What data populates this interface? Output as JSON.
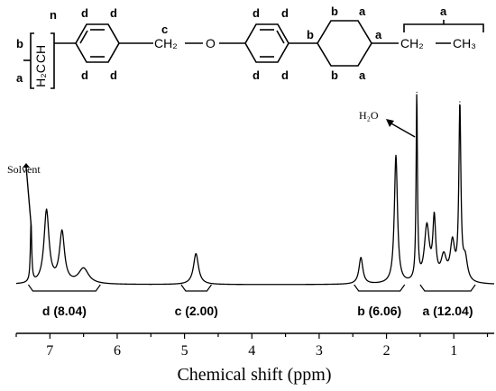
{
  "chart_data": {
    "type": "line",
    "xlabel": "Chemical shift (ppm)",
    "x_reversed": true,
    "xlim": [
      7.5,
      0.4
    ],
    "x_ticks": [
      7,
      6,
      5,
      4,
      3,
      2,
      1
    ],
    "grid": false,
    "peaks": [
      {
        "ppm": 7.28,
        "height": 0.27,
        "width": 0.012
      },
      {
        "ppm": 7.05,
        "height": 0.33,
        "width": 0.045
      },
      {
        "ppm": 6.82,
        "height": 0.23,
        "width": 0.045
      },
      {
        "ppm": 6.5,
        "height": 0.07,
        "width": 0.09
      },
      {
        "ppm": 4.83,
        "height": 0.14,
        "width": 0.045
      },
      {
        "ppm": 2.38,
        "height": 0.12,
        "width": 0.035
      },
      {
        "ppm": 1.86,
        "height": 0.58,
        "width": 0.028
      },
      {
        "ppm": 1.55,
        "height": 0.84,
        "width": 0.012
      },
      {
        "ppm": 1.4,
        "height": 0.25,
        "width": 0.045
      },
      {
        "ppm": 1.29,
        "height": 0.27,
        "width": 0.026
      },
      {
        "ppm": 1.15,
        "height": 0.11,
        "width": 0.05
      },
      {
        "ppm": 1.02,
        "height": 0.17,
        "width": 0.04
      },
      {
        "ppm": 0.91,
        "height": 0.78,
        "width": 0.018
      },
      {
        "ppm": 0.83,
        "height": 0.1,
        "width": 0.04
      }
    ],
    "integrals": [
      {
        "label": "d (8.04)",
        "from": 7.32,
        "to": 6.25
      },
      {
        "label": "c (2.00)",
        "from": 5.05,
        "to": 4.6
      },
      {
        "label": "b (6.06)",
        "from": 2.48,
        "to": 1.73
      },
      {
        "label": "a (12.04)",
        "from": 1.5,
        "to": 0.68
      }
    ],
    "annotations": [
      {
        "text": "Solvent",
        "ppm": 7.28
      },
      {
        "text": "H₂O",
        "ppm": 1.55
      }
    ]
  },
  "structure": {
    "polymer_repeat": "n",
    "backbone_ch": "CH",
    "backbone_ch2": "H₂C",
    "linker_ch2": "CH₂",
    "linker_o": "O",
    "propyl_ch2": "CH₂",
    "propyl_ch3": "CH₃",
    "label_a": "a",
    "label_b": "b",
    "label_c": "c",
    "label_d": "d"
  }
}
